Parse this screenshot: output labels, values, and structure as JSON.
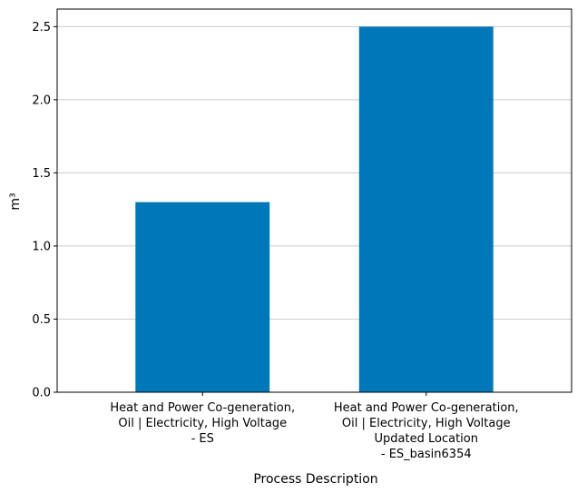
{
  "chart_data": {
    "type": "bar",
    "categories": [
      [
        "Heat and Power Co-generation,",
        "Oil | Electricity, High Voltage",
        "- ES"
      ],
      [
        "Heat and Power Co-generation,",
        "Oil | Electricity, High Voltage",
        "Updated Location",
        "- ES_basin6354"
      ]
    ],
    "values": [
      1.3,
      2.5
    ],
    "title": "",
    "xlabel": "Process Description",
    "ylabel": "m³",
    "ylim": [
      0,
      2.62
    ],
    "yticks": [
      0.0,
      0.5,
      1.0,
      1.5,
      2.0,
      2.5
    ],
    "ytick_labels": [
      "0.0",
      "0.5",
      "1.0",
      "1.5",
      "2.0",
      "2.5"
    ],
    "grid": "y",
    "bar_color": "#0077b6",
    "grid_color": "#cccccc"
  }
}
